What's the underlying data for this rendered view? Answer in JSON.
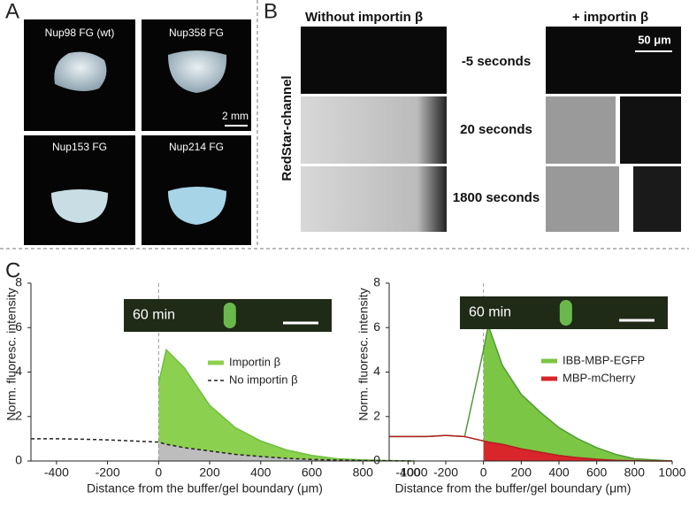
{
  "panel_a": {
    "letter": "A",
    "photos": [
      "Nup98 FG (wt)",
      "Nup358 FG",
      "Nup153 FG",
      "Nup214 FG"
    ],
    "scale_bar": "2 mm"
  },
  "panel_b": {
    "letter": "B",
    "left_header": "Without importin β",
    "right_header": "+ importin β",
    "scale_bar": "50 μm",
    "channel": "RedStar-channel",
    "rows": [
      "-5 seconds",
      "20 seconds",
      "1800 seconds"
    ]
  },
  "panel_c": {
    "letter": "C"
  },
  "chart_data": [
    {
      "type": "area",
      "xlabel": "Distance from the buffer/gel boundary (μm)",
      "ylabel": "Norm. fluoresc. intensity",
      "inset": "60 min",
      "x": [
        -500,
        -400,
        -300,
        -200,
        -100,
        0,
        30,
        100,
        200,
        300,
        400,
        500,
        600,
        700,
        800,
        900,
        1000
      ],
      "xlim": [
        -500,
        1000
      ],
      "xticks": [
        -400,
        -200,
        0,
        200,
        400,
        600,
        800,
        1000
      ],
      "ylim": [
        0,
        8
      ],
      "yticks": [
        0,
        2,
        4,
        6,
        8
      ],
      "series": [
        {
          "name": "Importin β",
          "color": "#6fbf3e",
          "fill": "#8cd04f",
          "fill_from": 0,
          "dash": false,
          "values": [
            null,
            null,
            null,
            null,
            null,
            3.5,
            5.0,
            4.2,
            2.5,
            1.5,
            0.9,
            0.5,
            0.25,
            0.1,
            0.05,
            0.02,
            0
          ]
        },
        {
          "name": "No importin β",
          "color": "#222222",
          "fill": "#bdbdbd",
          "fill_from": 0,
          "dash": true,
          "values": [
            1.0,
            1.0,
            0.98,
            0.95,
            0.9,
            0.85,
            0.75,
            0.6,
            0.45,
            0.3,
            0.2,
            0.12,
            0.07,
            0.04,
            0.02,
            0.01,
            0
          ]
        }
      ]
    },
    {
      "type": "area",
      "xlabel": "Distance from the buffer/gel boundary (μm)",
      "ylabel": "Norm. fluoresc. intensity",
      "inset": "60 min",
      "x": [
        -500,
        -400,
        -300,
        -200,
        -100,
        0,
        25,
        100,
        200,
        300,
        400,
        500,
        600,
        700,
        800,
        900,
        1000
      ],
      "xlim": [
        -500,
        1000
      ],
      "xticks": [
        -400,
        -200,
        0,
        200,
        400,
        600,
        800,
        1000
      ],
      "ylim": [
        0,
        8
      ],
      "yticks": [
        0,
        2,
        4,
        6,
        8
      ],
      "series": [
        {
          "name": "IBB-MBP-EGFP",
          "color": "#4f9a35",
          "fill": "#7cc645",
          "fill_from": 0,
          "dash": false,
          "values": [
            1.1,
            1.1,
            1.1,
            1.15,
            1.1,
            5.0,
            6.1,
            4.3,
            3.0,
            2.2,
            1.5,
            1.0,
            0.6,
            0.3,
            0.1,
            0.05,
            0
          ]
        },
        {
          "name": "MBP-mCherry",
          "color": "#b02020",
          "fill": "#d8262a",
          "fill_from": 0,
          "dash": false,
          "values": [
            1.1,
            1.1,
            1.1,
            1.15,
            1.1,
            0.9,
            0.85,
            0.75,
            0.55,
            0.4,
            0.25,
            0.15,
            0.08,
            0.03,
            0.01,
            0,
            0
          ]
        }
      ]
    }
  ]
}
